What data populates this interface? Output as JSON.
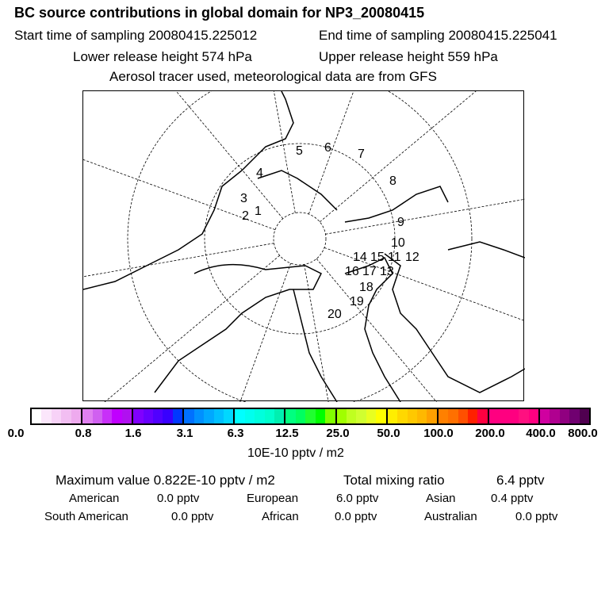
{
  "header": {
    "title": "BC  source contributions in global domain for NP3_20080415",
    "start_label": "Start time of sampling 20080415.225012",
    "end_label": "End time of sampling 20080415.225041",
    "lower_label": "Lower release height  574 hPa",
    "upper_label": "Upper release height  559 hPa",
    "info": "Aerosol tracer used, meteorological data are from GFS"
  },
  "map": {
    "point_labels": [
      "1",
      "2",
      "3",
      "4",
      "5",
      "6",
      "7",
      "8",
      "9",
      "10",
      "11",
      "12",
      "13",
      "14",
      "15",
      "16",
      "17",
      "18",
      "19",
      "20"
    ]
  },
  "colorbar": {
    "ticks": [
      "0.0",
      "0.8",
      "1.6",
      "3.1",
      "6.3",
      "12.5",
      "25.0",
      "50.0",
      "100.0",
      "200.0",
      "400.0",
      "800.0"
    ],
    "unit": "10E-10 pptv / m2",
    "colors": [
      [
        "#ffffff",
        "#fbe6fb",
        "#f7d2f7",
        "#f2bef2",
        "#eeaaee"
      ],
      [
        "#e080f0",
        "#d060f0",
        "#c830f8",
        "#c000ff",
        "#b010f0"
      ],
      [
        "#8000ff",
        "#6800ff",
        "#5000ff",
        "#3800ff",
        "#0038ff"
      ],
      [
        "#0070ff",
        "#0090ff",
        "#00a8ff",
        "#00c0ff",
        "#00d8ff"
      ],
      [
        "#00ffff",
        "#00ffee",
        "#00ffdd",
        "#00ffcc",
        "#00f0b0"
      ],
      [
        "#00ff80",
        "#00ff60",
        "#20ff30",
        "#00ff00",
        "#80ff00"
      ],
      [
        "#a0ff00",
        "#c0ff20",
        "#d0ff30",
        "#e8ff20",
        "#ffff00"
      ],
      [
        "#ffee00",
        "#ffd800",
        "#ffc800",
        "#ffb800",
        "#ffa000"
      ],
      [
        "#ff8000",
        "#ff7000",
        "#ff5000",
        "#ff2000",
        "#ff0040"
      ],
      [
        "#ff0080",
        "#ff0080",
        "#ff0080",
        "#ff1080",
        "#ff0080"
      ],
      [
        "#d000a0",
        "#b00090",
        "#900080",
        "#700070",
        "#500050"
      ]
    ]
  },
  "summary": {
    "max_label": "Maximum value  0.822E-10 pptv / m2",
    "total_label": "Total mixing ratio",
    "total_value": "6.4 pptv",
    "regions": [
      {
        "name": "American",
        "value": "0.0 pptv"
      },
      {
        "name": "European",
        "value": "6.0 pptv"
      },
      {
        "name": "Asian",
        "value": "0.4 pptv"
      },
      {
        "name": "South American",
        "value": "0.0 pptv"
      },
      {
        "name": "African",
        "value": "0.0 pptv"
      },
      {
        "name": "Australian",
        "value": "0.0 pptv"
      }
    ]
  }
}
